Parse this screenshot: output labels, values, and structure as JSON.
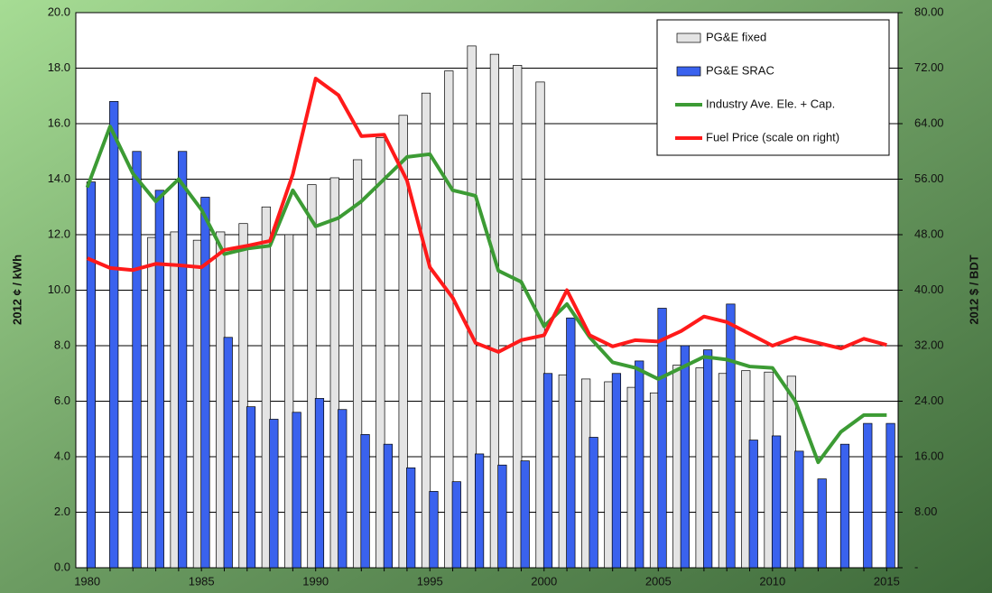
{
  "chart_data": {
    "type": "bar",
    "y_label": "2012 ¢ / kWh",
    "y2_label": "2012 $ / BDT",
    "categories": [
      "1980",
      null,
      null,
      null,
      null,
      "1985",
      null,
      null,
      null,
      null,
      "1990",
      null,
      null,
      null,
      null,
      "1995",
      null,
      null,
      null,
      null,
      "2000",
      null,
      null,
      null,
      null,
      "2005",
      null,
      null,
      null,
      null,
      "2010",
      null,
      null,
      null,
      null,
      "2015"
    ],
    "ylim": [
      0,
      20
    ],
    "yticks": [
      {
        "value": 0,
        "label": "0.0"
      },
      {
        "value": 2,
        "label": "2.0"
      },
      {
        "value": 4,
        "label": "4.0"
      },
      {
        "value": 6,
        "label": "6.0"
      },
      {
        "value": 8,
        "label": "8.0"
      },
      {
        "value": 10,
        "label": "10.0"
      },
      {
        "value": 12,
        "label": "12.0"
      },
      {
        "value": 14,
        "label": "14.0"
      },
      {
        "value": 16,
        "label": "16.0"
      },
      {
        "value": 18,
        "label": "18.0"
      },
      {
        "value": 20,
        "label": "20.0"
      }
    ],
    "y2lim": [
      0,
      80
    ],
    "y2ticks": [
      {
        "value": 0,
        "label": "-"
      },
      {
        "value": 8,
        "label": "8.00"
      },
      {
        "value": 16,
        "label": "16.00"
      },
      {
        "value": 24,
        "label": "24.00"
      },
      {
        "value": 32,
        "label": "32.00"
      },
      {
        "value": 40,
        "label": "40.00"
      },
      {
        "value": 48,
        "label": "48.00"
      },
      {
        "value": 56,
        "label": "56.00"
      },
      {
        "value": 64,
        "label": "64.00"
      },
      {
        "value": 72,
        "label": "72.00"
      },
      {
        "value": 80,
        "label": "80.00"
      }
    ],
    "grid": true,
    "legend": "top-right",
    "series": [
      {
        "name": "PG&E fixed",
        "type": "bar",
        "color": "#e4e4e4",
        "values": [
          null,
          null,
          null,
          11.9,
          12.1,
          11.8,
          12.1,
          12.4,
          13.0,
          12.0,
          13.8,
          14.05,
          14.7,
          15.5,
          16.3,
          17.1,
          17.9,
          18.8,
          18.5,
          18.1,
          17.5,
          6.95,
          6.8,
          6.7,
          6.5,
          6.3,
          7.3,
          7.2,
          7.0,
          7.1,
          7.05,
          6.9,
          null,
          null,
          null,
          null
        ]
      },
      {
        "name": "PG&E SRAC",
        "type": "bar",
        "color": "#3a62ee",
        "values": [
          13.9,
          16.8,
          15.0,
          13.6,
          15.0,
          13.35,
          8.3,
          5.8,
          5.35,
          5.6,
          6.1,
          5.7,
          4.8,
          4.45,
          3.6,
          2.75,
          3.1,
          4.1,
          3.7,
          3.85,
          7.0,
          9.0,
          4.7,
          7.0,
          7.45,
          9.35,
          8.0,
          7.85,
          9.5,
          4.6,
          4.75,
          4.2,
          3.2,
          4.45,
          5.2,
          5.2
        ]
      },
      {
        "name": "Industry Ave. Ele. + Cap.",
        "type": "line",
        "color": "#3c9b34",
        "values": [
          13.7,
          15.9,
          14.2,
          13.2,
          14.0,
          12.9,
          11.3,
          11.5,
          11.6,
          13.6,
          12.3,
          12.6,
          13.2,
          14.0,
          14.8,
          14.9,
          13.6,
          13.4,
          10.7,
          10.3,
          8.7,
          9.5,
          8.3,
          7.4,
          7.2,
          6.8,
          7.2,
          7.6,
          7.5,
          7.25,
          7.2,
          6.0,
          3.8,
          4.9,
          5.5,
          5.5
        ]
      },
      {
        "name": "Fuel Price (scale on right)",
        "type": "line",
        "axis": "y2",
        "color": "#ff1a1a",
        "values": [
          44.6,
          43.2,
          42.9,
          43.8,
          43.6,
          43.3,
          45.8,
          46.4,
          47.1,
          56.7,
          70.5,
          68.1,
          62.2,
          62.4,
          55.8,
          43.3,
          38.9,
          32.4,
          31.1,
          32.8,
          33.5,
          40.0,
          33.5,
          31.9,
          32.8,
          32.6,
          34.1,
          36.2,
          35.4,
          33.7,
          32.0,
          33.2,
          32.4,
          31.6,
          33.0,
          32.1
        ]
      }
    ]
  }
}
